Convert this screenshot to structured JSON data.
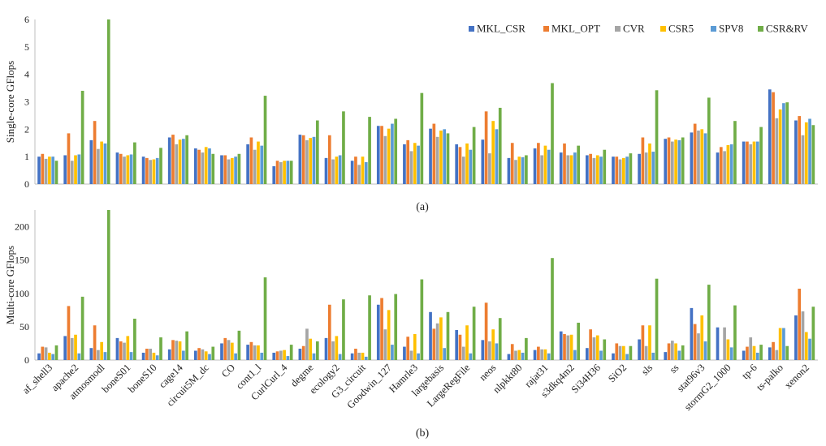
{
  "chart_data": [
    {
      "type": "bar",
      "caption": "(a)",
      "ylabel": "Single-core GFlops",
      "ylim": [
        0,
        6
      ],
      "yticks": [
        0,
        1,
        2,
        3,
        4,
        5,
        6
      ],
      "grid": false,
      "legend": "top-right",
      "categories": [
        "af_shell3",
        "apache2",
        "atmosmodl",
        "boneS01",
        "boneS10",
        "cage14",
        "circuit5M_dc",
        "CO",
        "cont1_l",
        "CurlCurl_4",
        "degme",
        "ecology2",
        "G3_circuit",
        "Goodwin_127",
        "Hamrle3",
        "largebasis",
        "LargeRegFile",
        "neos",
        "nlpkkt80",
        "rajat31",
        "s3dkq4m2",
        "Si34H36",
        "SiO2",
        "sls",
        "ss",
        "stat96v3",
        "stormG2_1000",
        "tp-6",
        "ts-palko",
        "xenon2"
      ],
      "series": [
        {
          "name": "MKL_CSR",
          "color": "#4472C4",
          "values": [
            1.0,
            1.05,
            1.6,
            1.15,
            1.0,
            1.7,
            1.3,
            1.05,
            1.45,
            0.65,
            1.8,
            0.95,
            0.85,
            2.12,
            1.45,
            2.02,
            1.45,
            1.62,
            0.95,
            1.3,
            1.15,
            1.05,
            1.0,
            1.1,
            1.65,
            1.88,
            1.15,
            1.55,
            3.45,
            2.32
          ]
        },
        {
          "name": "MKL_OPT",
          "color": "#ED7D31",
          "values": [
            1.1,
            1.85,
            2.3,
            1.1,
            0.95,
            1.8,
            1.25,
            1.05,
            1.7,
            0.85,
            1.78,
            1.78,
            1.0,
            2.12,
            1.6,
            2.2,
            1.35,
            2.65,
            1.5,
            1.5,
            1.48,
            1.1,
            1.0,
            1.7,
            1.7,
            2.2,
            1.35,
            1.55,
            3.35,
            2.48
          ]
        },
        {
          "name": "CVR",
          "color": "#A5A5A5",
          "values": [
            0.92,
            0.85,
            1.28,
            1.0,
            0.88,
            1.45,
            1.15,
            0.9,
            1.25,
            0.8,
            1.6,
            0.9,
            0.7,
            1.75,
            1.2,
            1.72,
            1.0,
            1.12,
            0.88,
            1.05,
            1.05,
            0.95,
            0.9,
            1.15,
            1.55,
            1.95,
            1.2,
            1.45,
            2.4,
            1.78
          ]
        },
        {
          "name": "CSR5",
          "color": "#FFC000",
          "values": [
            1.0,
            1.05,
            1.55,
            1.05,
            0.9,
            1.62,
            1.35,
            0.95,
            1.55,
            0.85,
            1.68,
            1.0,
            1.0,
            2.02,
            1.5,
            1.95,
            1.48,
            2.3,
            1.0,
            1.4,
            1.05,
            1.05,
            0.95,
            1.48,
            1.62,
            2.0,
            1.42,
            1.55,
            2.72,
            2.25
          ]
        },
        {
          "name": "SPV8",
          "color": "#5B9BD5",
          "values": [
            1.0,
            1.08,
            1.48,
            1.08,
            0.95,
            1.65,
            1.3,
            1.0,
            1.4,
            0.85,
            1.72,
            1.05,
            0.8,
            2.2,
            1.4,
            2.0,
            1.25,
            2.0,
            0.98,
            1.25,
            1.15,
            1.0,
            1.0,
            1.18,
            1.6,
            1.85,
            1.45,
            1.55,
            2.95,
            2.38
          ]
        },
        {
          "name": "CSR&RV",
          "color": "#70AD47",
          "values": [
            0.85,
            3.4,
            6.0,
            1.52,
            1.32,
            1.78,
            1.1,
            1.1,
            3.22,
            0.85,
            2.32,
            2.65,
            2.45,
            2.38,
            3.32,
            1.85,
            2.08,
            2.78,
            1.05,
            3.68,
            1.4,
            1.25,
            1.12,
            3.42,
            1.7,
            3.15,
            2.3,
            2.08,
            2.98,
            2.15
          ]
        }
      ]
    },
    {
      "type": "bar",
      "caption": "(b)",
      "ylabel": "Multi-core GFlops",
      "ylim": [
        0,
        225
      ],
      "yticks": [
        0,
        50,
        100,
        150,
        200
      ],
      "grid": false,
      "categories": [
        "af_shell3",
        "apache2",
        "atmosmodl",
        "boneS01",
        "boneS10",
        "cage14",
        "circuit5M_dc",
        "CO",
        "cont1_l",
        "CurlCurl_4",
        "degme",
        "ecology2",
        "G3_circuit",
        "Goodwin_127",
        "Hamrle3",
        "largebasis",
        "LargeRegFile",
        "neos",
        "nlpkkt80",
        "rajat31",
        "s3dkq4m2",
        "Si34H36",
        "SiO2",
        "sls",
        "ss",
        "stat96v3",
        "stormG2_1000",
        "tp-6",
        "ts-palko",
        "xenon2"
      ],
      "series": [
        {
          "name": "MKL_CSR",
          "color": "#4472C4",
          "values": [
            10,
            36,
            18,
            33,
            11,
            16,
            14,
            25,
            23,
            11,
            17,
            33,
            10,
            83,
            20,
            72,
            45,
            30,
            9,
            15,
            43,
            18,
            10,
            31,
            12,
            78,
            49,
            14,
            19,
            67
          ]
        },
        {
          "name": "MKL_OPT",
          "color": "#ED7D31",
          "values": [
            20,
            81,
            52,
            28,
            17,
            30,
            18,
            33,
            27,
            13,
            21,
            83,
            17,
            93,
            35,
            47,
            38,
            86,
            24,
            20,
            39,
            46,
            25,
            52,
            25,
            54,
            0,
            20,
            27,
            107
          ]
        },
        {
          "name": "CVR",
          "color": "#A5A5A5",
          "values": [
            19,
            33,
            15,
            26,
            17,
            29,
            16,
            30,
            22,
            14,
            47,
            28,
            11,
            46,
            14,
            55,
            20,
            28,
            14,
            16,
            37,
            34,
            21,
            21,
            29,
            40,
            49,
            34,
            15,
            73
          ]
        },
        {
          "name": "CSR5",
          "color": "#FFC000",
          "values": [
            11,
            38,
            27,
            36,
            11,
            28,
            13,
            26,
            22,
            15,
            32,
            36,
            11,
            75,
            39,
            64,
            52,
            46,
            15,
            16,
            38,
            37,
            21,
            52,
            25,
            67,
            31,
            21,
            48,
            42
          ]
        },
        {
          "name": "SPV8",
          "color": "#5B9BD5",
          "values": [
            9,
            10,
            12,
            12,
            7,
            14,
            9,
            10,
            11,
            6,
            10,
            9,
            5,
            23,
            10,
            18,
            10,
            25,
            11,
            10,
            15,
            14,
            9,
            11,
            14,
            28,
            19,
            11,
            48,
            32
          ]
        },
        {
          "name": "CSR&RV",
          "color": "#70AD47",
          "values": [
            22,
            95,
            225,
            62,
            34,
            43,
            20,
            44,
            124,
            23,
            28,
            91,
            97,
            99,
            121,
            72,
            80,
            63,
            33,
            153,
            56,
            31,
            21,
            122,
            22,
            113,
            82,
            23,
            21,
            80
          ]
        }
      ]
    }
  ]
}
